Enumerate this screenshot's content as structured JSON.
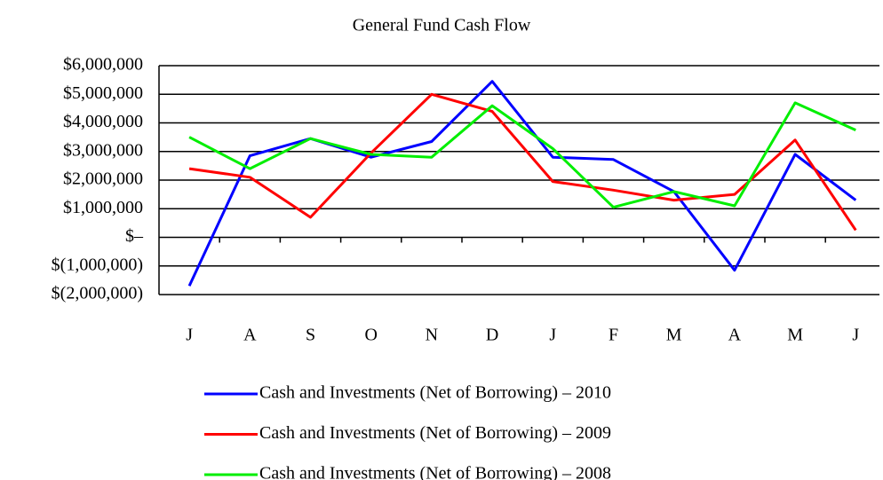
{
  "chart_data": {
    "type": "line",
    "title": "General Fund Cash Flow",
    "categories": [
      "J",
      "A",
      "S",
      "O",
      "N",
      "D",
      "J",
      "F",
      "M",
      "A",
      "M",
      "J"
    ],
    "series": [
      {
        "name": "Cash and Investments (Net of Borrowing) – 2010",
        "color": "#0000ff",
        "values": [
          -1700000,
          2850000,
          3450000,
          2800000,
          3350000,
          5450000,
          2800000,
          2720000,
          1600000,
          -1150000,
          2900000,
          1300000
        ]
      },
      {
        "name": "Cash and Investments (Net of Borrowing) – 2009",
        "color": "#ff0000",
        "values": [
          2400000,
          2100000,
          700000,
          2950000,
          5000000,
          4400000,
          1950000,
          1650000,
          1300000,
          1500000,
          3400000,
          250000
        ]
      },
      {
        "name": "Cash and Investments (Net of Borrowing) – 2008",
        "color": "#00ee00",
        "values": [
          3500000,
          2400000,
          3450000,
          2900000,
          2800000,
          4600000,
          3100000,
          1050000,
          1600000,
          1100000,
          4700000,
          3750000
        ]
      }
    ],
    "ylim": [
      -2000000,
      6000000
    ],
    "yticks": [
      {
        "value": -2000000,
        "label": "$(2,000,000)"
      },
      {
        "value": -1000000,
        "label": "$(1,000,000)"
      },
      {
        "value": 0,
        "label": "$–"
      },
      {
        "value": 1000000,
        "label": "$1,000,000"
      },
      {
        "value": 2000000,
        "label": "$2,000,000"
      },
      {
        "value": 3000000,
        "label": "$3,000,000"
      },
      {
        "value": 4000000,
        "label": "$4,000,000"
      },
      {
        "value": 5000000,
        "label": "$5,000,000"
      },
      {
        "value": 6000000,
        "label": "$6,000,000"
      }
    ],
    "grid": true
  }
}
